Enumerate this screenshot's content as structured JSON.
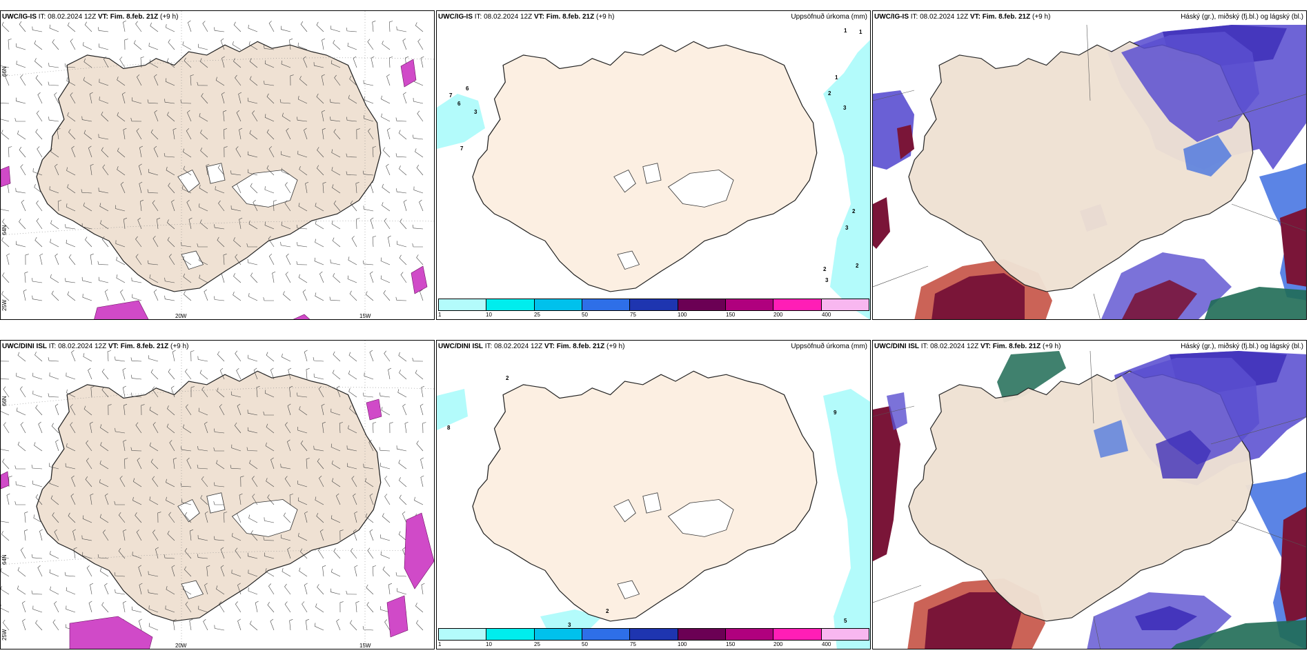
{
  "valid_time_label": "VT:",
  "init_label": "IT:",
  "panels": [
    {
      "model": "UWC/IG-IS",
      "it": "08.02.2024 12Z",
      "vt": "Fim. 8.feb. 21Z",
      "lead": "(+9 h)",
      "right_title": ""
    },
    {
      "model": "UWC/IG-IS",
      "it": "08.02.2024 12Z",
      "vt": "Fim. 8.feb. 21Z",
      "lead": "(+9 h)",
      "right_title": "Uppsöfnuð úrkoma (mm)"
    },
    {
      "model": "UWC/IG-IS",
      "it": "08.02.2024 12Z",
      "vt": "Fim. 8.feb. 21Z",
      "lead": "(+9 h)",
      "right_title": "Háský (gr.), miðský (fj.bl.) og lágský (bl.)"
    },
    {
      "model": "UWC/DINI ISL",
      "it": "08.02.2024 12Z",
      "vt": "Fim. 8.feb. 21Z",
      "lead": "(+9 h)",
      "right_title": ""
    },
    {
      "model": "UWC/DINI ISL",
      "it": "08.02.2024 12Z",
      "vt": "Fim. 8.feb. 21Z",
      "lead": "(+9 h)",
      "right_title": "Uppsöfnuð úrkoma (mm)"
    },
    {
      "model": "UWC/DINI ISL",
      "it": "08.02.2024 12Z",
      "vt": "Fim. 8.feb. 21Z",
      "lead": "(+9 h)",
      "right_title": "Háský (gr.), miðský (fj.bl.) og lágský (bl.)"
    }
  ],
  "grid_labels": {
    "lat1": "66N",
    "lat2": "64N",
    "lon1": "25W",
    "lon2": "20W",
    "lon3": "15W"
  },
  "colorbar": {
    "labels": [
      "1",
      "10",
      "25",
      "50",
      "75",
      "100",
      "150",
      "200",
      "400"
    ],
    "colors": [
      "#b3fbfb",
      "#00eded",
      "#00c1ec",
      "#2e6fe8",
      "#1e35b0",
      "#6b0054",
      "#b0007e",
      "#ff1eb6",
      "#f8b7f0"
    ]
  },
  "precip_values_top": [
    "1",
    "1",
    "1",
    "2",
    "3",
    "6",
    "7",
    "6",
    "3",
    "7",
    "2",
    "3",
    "2",
    "2",
    "3"
  ],
  "precip_values_bottom": [
    "2",
    "8",
    "9",
    "5",
    "2",
    "3"
  ],
  "colors": {
    "land": "#efe1d3",
    "land_precip": "#fcefe2",
    "ocean_precip": "#b3fbfb",
    "cloud_high": "#1f6b55",
    "cloud_mid": "#5a4fd0",
    "cloud_low": "#7a1538"
  }
}
